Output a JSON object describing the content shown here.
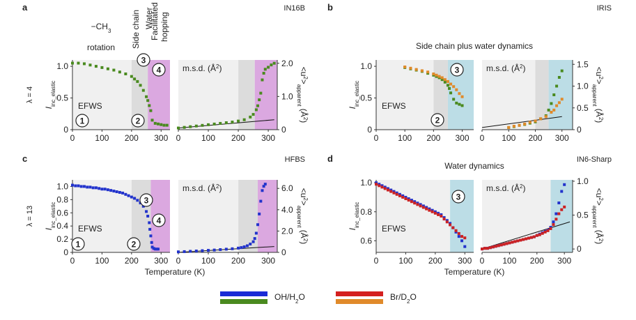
{
  "chart_data": [
    {
      "panel": "a",
      "instrument": "IN16B",
      "type": "scatter",
      "lambda_label": "λ = 4",
      "regime_labels": [
        "−CH3 rotation",
        "Side chain",
        "Water",
        "Facilitated hopping"
      ],
      "circle_labels": [
        "1",
        "2",
        "3",
        "4"
      ],
      "left_text": "EFWS",
      "right_text": "m.s.d. (Å2)",
      "left": {
        "ylabel": "Iinc_elastic",
        "xlim": [
          0,
          330
        ],
        "ylim": [
          0,
          1.1
        ],
        "xticks": [
          "0",
          "100",
          "200",
          "300"
        ],
        "yticks": [
          "0",
          "0.5",
          "1.0"
        ],
        "series": [
          {
            "name": "OH/H2O",
            "color": "#4a8a1f",
            "x": [
              0,
              20,
              40,
              60,
              80,
              100,
              120,
              140,
              160,
              180,
              200,
              210,
              220,
              230,
              240,
              250,
              255,
              260,
              265,
              270,
              280,
              290,
              300,
              310,
              320
            ],
            "y": [
              1.05,
              1.05,
              1.04,
              1.02,
              1.0,
              0.98,
              0.96,
              0.94,
              0.91,
              0.88,
              0.84,
              0.8,
              0.76,
              0.7,
              0.62,
              0.52,
              0.46,
              0.38,
              0.3,
              0.15,
              0.1,
              0.09,
              0.08,
              0.07,
              0.07
            ]
          }
        ]
      },
      "right": {
        "ylabel": "<u2>apparent (Å2)",
        "xlim": [
          0,
          330
        ],
        "ylim": [
          0,
          2.1
        ],
        "xticks": [
          "0",
          "100",
          "200",
          "300"
        ],
        "yticks": [
          "0",
          "1.0",
          "2.0"
        ],
        "series": [
          {
            "name": "OH/H2O",
            "color": "#4a8a1f",
            "x": [
              0,
              20,
              40,
              60,
              80,
              100,
              120,
              140,
              160,
              180,
              200,
              220,
              240,
              250,
              260,
              265,
              270,
              275,
              280,
              285,
              290,
              300,
              310,
              320
            ],
            "y": [
              0.05,
              0.07,
              0.09,
              0.11,
              0.13,
              0.15,
              0.17,
              0.19,
              0.21,
              0.23,
              0.26,
              0.3,
              0.38,
              0.46,
              0.6,
              0.72,
              0.9,
              1.1,
              1.5,
              1.7,
              1.82,
              1.88,
              1.95,
              2.0
            ]
          }
        ],
        "fit": {
          "x": [
            0,
            320
          ],
          "y": [
            0.05,
            0.3
          ]
        }
      }
    },
    {
      "panel": "b",
      "instrument": "IRIS",
      "type": "scatter",
      "subtitle": "Side chain plus water dynamics",
      "circle_labels": [
        "3",
        "2"
      ],
      "left_text": "EFWS",
      "right_text": "m.s.d. (Å2)",
      "left": {
        "ylabel": "Iinc_elastic",
        "xlim": [
          0,
          340
        ],
        "ylim": [
          0,
          1.1
        ],
        "xticks": [
          "0",
          "100",
          "200",
          "300"
        ],
        "yticks": [
          "0",
          "0.5",
          "1.0"
        ],
        "series": [
          {
            "name": "OH/H2O",
            "color": "#4a8a1f",
            "x": [
              100,
              120,
              140,
              160,
              180,
              200,
              210,
              220,
              230,
              240,
              250,
              255,
              260,
              270,
              280,
              290,
              300
            ],
            "y": [
              0.98,
              0.96,
              0.94,
              0.92,
              0.89,
              0.86,
              0.84,
              0.82,
              0.79,
              0.75,
              0.7,
              0.65,
              0.58,
              0.48,
              0.42,
              0.4,
              0.38
            ]
          },
          {
            "name": "Br/D2O",
            "color": "#e08a2a",
            "x": [
              100,
              120,
              140,
              160,
              180,
              200,
              210,
              220,
              230,
              240,
              250,
              260,
              270,
              280,
              290,
              300
            ],
            "y": [
              0.99,
              0.97,
              0.95,
              0.93,
              0.91,
              0.88,
              0.86,
              0.84,
              0.82,
              0.79,
              0.76,
              0.72,
              0.68,
              0.63,
              0.57,
              0.52
            ]
          }
        ]
      },
      "right": {
        "ylabel": "<u2>apparent (Å2)",
        "xlim": [
          0,
          340
        ],
        "ylim": [
          0,
          1.6
        ],
        "xticks": [
          "0",
          "100",
          "200",
          "300"
        ],
        "yticks": [
          "0",
          "0.5",
          "1.0",
          "1.5"
        ],
        "series": [
          {
            "name": "OH/H2O",
            "color": "#4a8a1f",
            "x": [
              100,
              120,
              140,
              160,
              180,
              200,
              220,
              240,
              250,
              260,
              270,
              280,
              290,
              300
            ],
            "y": [
              0.05,
              0.07,
              0.1,
              0.12,
              0.15,
              0.18,
              0.25,
              0.32,
              0.45,
              0.6,
              0.8,
              1.0,
              1.2,
              1.35
            ]
          },
          {
            "name": "Br/D2O",
            "color": "#e08a2a",
            "x": [
              100,
              120,
              140,
              160,
              180,
              200,
              220,
              240,
              260,
              270,
              280,
              290,
              300
            ],
            "y": [
              0.05,
              0.08,
              0.1,
              0.13,
              0.17,
              0.2,
              0.25,
              0.3,
              0.4,
              0.45,
              0.55,
              0.62,
              0.7
            ]
          }
        ],
        "fit": {
          "x": [
            0,
            300
          ],
          "y": [
            0.05,
            0.3
          ]
        }
      }
    },
    {
      "panel": "c",
      "instrument": "HFBS",
      "type": "scatter",
      "lambda_label": "λ = 13",
      "circle_labels": [
        "1",
        "2",
        "3",
        "4"
      ],
      "left_text": "EFWS",
      "right_text": "m.s.d. (Å2)",
      "left": {
        "ylabel": "Iinc_elastic",
        "xlim": [
          0,
          330
        ],
        "ylim": [
          0,
          1.1
        ],
        "xlabel": "Temperature (K)",
        "xticks": [
          "0",
          "100",
          "200",
          "300"
        ],
        "yticks": [
          "0",
          "0.2",
          "0.4",
          "0.6",
          "0.8",
          "1.0"
        ],
        "series": [
          {
            "name": "OH/H2O",
            "color": "#2233cc",
            "x": [
              0,
              10,
              20,
              30,
              40,
              50,
              60,
              70,
              80,
              90,
              100,
              110,
              120,
              130,
              140,
              150,
              160,
              170,
              180,
              190,
              200,
              210,
              220,
              230,
              240,
              250,
              255,
              260,
              262,
              265,
              268,
              270,
              275,
              280,
              285,
              290
            ],
            "y": [
              1.02,
              1.01,
              1.01,
              1.0,
              1.0,
              0.99,
              0.99,
              0.98,
              0.98,
              0.97,
              0.96,
              0.96,
              0.95,
              0.94,
              0.93,
              0.92,
              0.91,
              0.9,
              0.88,
              0.86,
              0.84,
              0.82,
              0.79,
              0.75,
              0.7,
              0.62,
              0.55,
              0.45,
              0.35,
              0.25,
              0.15,
              0.08,
              0.06,
              0.05,
              0.05,
              0.05
            ]
          }
        ]
      },
      "right": {
        "ylabel": "<u2>apparent (Å2)",
        "xlim": [
          0,
          330
        ],
        "ylim": [
          0,
          6.8
        ],
        "xlabel": "Temperature (K)",
        "xticks": [
          "0",
          "100",
          "200",
          "300"
        ],
        "yticks": [
          "0",
          "2.0",
          "4.0",
          "6.0"
        ],
        "series": [
          {
            "name": "OH/H2O",
            "color": "#2233cc",
            "x": [
              0,
              20,
              40,
              60,
              80,
              100,
              120,
              140,
              160,
              180,
              200,
              210,
              220,
              230,
              240,
              250,
              255,
              260,
              265,
              270,
              275,
              280,
              285,
              290
            ],
            "y": [
              0.05,
              0.07,
              0.1,
              0.13,
              0.16,
              0.19,
              0.22,
              0.26,
              0.3,
              0.34,
              0.4,
              0.45,
              0.52,
              0.62,
              0.78,
              1.0,
              1.3,
              1.8,
              2.6,
              3.6,
              4.8,
              5.8,
              6.2,
              6.4
            ]
          }
        ],
        "fit": {
          "x": [
            0,
            320
          ],
          "y": [
            0.0,
            0.55
          ]
        }
      }
    },
    {
      "panel": "d",
      "instrument": "IN6-Sharp",
      "type": "scatter",
      "subtitle": "Water dynamics",
      "circle_labels": [
        "3"
      ],
      "left_text": "EFWS",
      "right_text": "m.s.d. (Å2)",
      "left": {
        "ylabel": "Iinc_elastic",
        "xlim": [
          0,
          330
        ],
        "ylim": [
          0.52,
          1.02
        ],
        "xlabel": "Temperature (K)",
        "xticks": [
          "0",
          "100",
          "200",
          "300"
        ],
        "yticks": [
          "0.6",
          "0.8",
          "1.0"
        ],
        "series": [
          {
            "name": "OH/H2O",
            "color": "#2233cc",
            "x": [
              0,
              10,
              20,
              30,
              40,
              50,
              60,
              70,
              80,
              90,
              100,
              110,
              120,
              130,
              140,
              150,
              160,
              170,
              180,
              190,
              200,
              210,
              220,
              230,
              240,
              250,
              260,
              270,
              280,
              290,
              300
            ],
            "y": [
              1.0,
              0.99,
              0.98,
              0.97,
              0.96,
              0.95,
              0.94,
              0.93,
              0.92,
              0.91,
              0.9,
              0.89,
              0.88,
              0.87,
              0.86,
              0.85,
              0.84,
              0.83,
              0.82,
              0.81,
              0.8,
              0.79,
              0.78,
              0.76,
              0.74,
              0.72,
              0.69,
              0.66,
              0.63,
              0.6,
              0.56
            ]
          },
          {
            "name": "Br/D2O",
            "color": "#cc2222",
            "x": [
              0,
              10,
              20,
              30,
              40,
              50,
              60,
              70,
              80,
              90,
              100,
              110,
              120,
              130,
              140,
              150,
              160,
              170,
              180,
              190,
              200,
              210,
              220,
              230,
              240,
              250,
              260,
              270,
              280,
              290,
              300
            ],
            "y": [
              0.99,
              0.98,
              0.97,
              0.96,
              0.95,
              0.94,
              0.93,
              0.92,
              0.91,
              0.9,
              0.89,
              0.88,
              0.87,
              0.86,
              0.85,
              0.84,
              0.83,
              0.82,
              0.81,
              0.8,
              0.79,
              0.78,
              0.77,
              0.75,
              0.73,
              0.71,
              0.69,
              0.67,
              0.65,
              0.63,
              0.62
            ]
          }
        ]
      },
      "right": {
        "ylabel": "<u2>apparent (Å2)",
        "xlim": [
          0,
          330
        ],
        "ylim": [
          -0.05,
          1.02
        ],
        "xlabel": "Temperature (K)",
        "xticks": [
          "0",
          "100",
          "200",
          "300"
        ],
        "yticks": [
          "0",
          "0.5",
          "1.0"
        ],
        "series": [
          {
            "name": "OH/H2O",
            "color": "#2233cc",
            "x": [
              0,
              10,
              20,
              30,
              40,
              50,
              60,
              70,
              80,
              90,
              100,
              110,
              120,
              130,
              140,
              150,
              160,
              170,
              180,
              190,
              200,
              210,
              220,
              230,
              240,
              250,
              260,
              270,
              280,
              290,
              300
            ],
            "y": [
              0.0,
              0.01,
              0.01,
              0.02,
              0.03,
              0.04,
              0.05,
              0.06,
              0.07,
              0.08,
              0.09,
              0.1,
              0.11,
              0.12,
              0.13,
              0.14,
              0.15,
              0.16,
              0.17,
              0.18,
              0.2,
              0.22,
              0.24,
              0.26,
              0.28,
              0.32,
              0.4,
              0.52,
              0.68,
              0.85,
              0.95
            ]
          },
          {
            "name": "Br/D2O",
            "color": "#cc2222",
            "x": [
              0,
              10,
              20,
              30,
              40,
              50,
              60,
              70,
              80,
              90,
              100,
              110,
              120,
              130,
              140,
              150,
              160,
              170,
              180,
              190,
              200,
              210,
              220,
              230,
              240,
              250,
              260,
              270,
              280,
              290,
              300
            ],
            "y": [
              0.0,
              0.01,
              0.01,
              0.02,
              0.03,
              0.04,
              0.05,
              0.06,
              0.07,
              0.08,
              0.09,
              0.1,
              0.11,
              0.12,
              0.13,
              0.14,
              0.15,
              0.16,
              0.17,
              0.18,
              0.2,
              0.21,
              0.23,
              0.25,
              0.27,
              0.3,
              0.36,
              0.44,
              0.52,
              0.58,
              0.62
            ]
          }
        ],
        "fit": {
          "x": [
            0,
            320
          ],
          "y": [
            0.0,
            0.4
          ]
        }
      }
    }
  ],
  "legend": {
    "entries": [
      {
        "label": "OH/H2O",
        "colors": [
          "#1a2bd6",
          "#4a8a1f"
        ]
      },
      {
        "label": "Br/D2O",
        "colors": [
          "#d42020",
          "#e08a2a"
        ]
      }
    ]
  },
  "colors": {
    "gray": "#dcdcdc",
    "purple": "#dba8e0",
    "blue": "#bcdde6"
  }
}
